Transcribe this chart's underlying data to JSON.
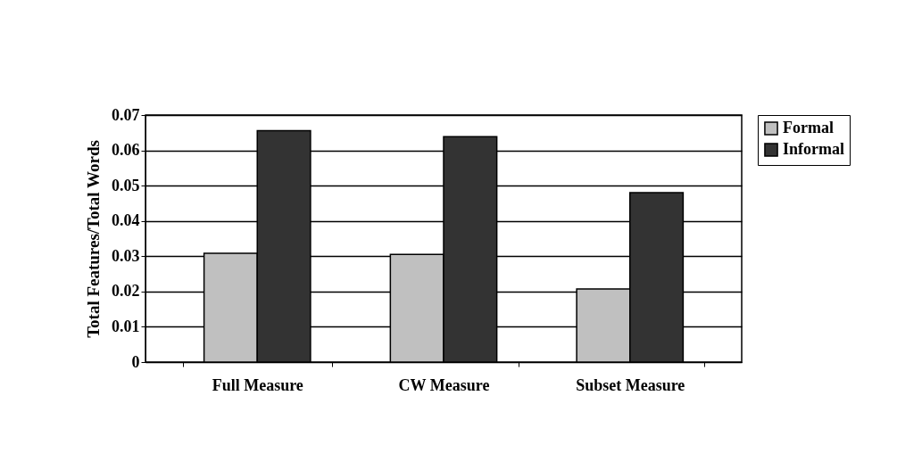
{
  "chart_data": {
    "type": "bar",
    "ylabel": "Total Features/Total Words",
    "categories": [
      "Full Measure",
      "CW Measure",
      "Subset Measure"
    ],
    "series": [
      {
        "name": "Formal",
        "color": "#c0c0c0",
        "values": [
          0.0308,
          0.0305,
          0.0207
        ]
      },
      {
        "name": "Informal",
        "color": "#333333",
        "values": [
          0.0656,
          0.0639,
          0.048
        ]
      }
    ],
    "ylim": [
      0,
      0.07
    ],
    "yticks": [
      0,
      0.01,
      0.02,
      0.03,
      0.04,
      0.05,
      0.06,
      0.07
    ],
    "grid": "y",
    "legend": "right"
  }
}
